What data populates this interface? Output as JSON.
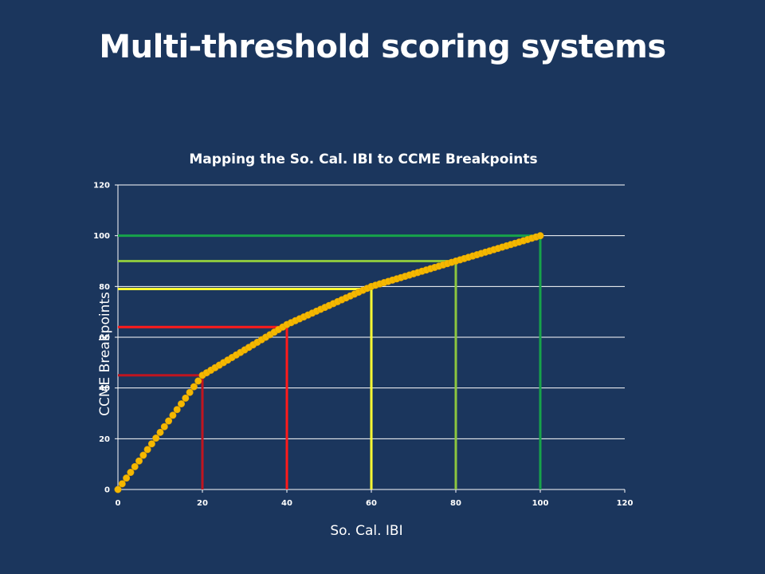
{
  "slide": {
    "title": "Multi-threshold scoring systems"
  },
  "chart_data": {
    "type": "scatter",
    "title": "Mapping the So. Cal. IBI to CCME Breakpoints",
    "xlabel": "So. Cal. IBI",
    "ylabel": "CCME Breakpoints",
    "xlim": [
      0,
      120
    ],
    "ylim": [
      0,
      120
    ],
    "xticks": [
      "0",
      "20",
      "40",
      "60",
      "80",
      "100",
      "120"
    ],
    "yticks": [
      "0",
      "20",
      "40",
      "60",
      "80",
      "100",
      "120"
    ],
    "grid": true,
    "series": [
      {
        "color": "#f5b800",
        "breakpoints": [
          [
            0,
            0
          ],
          [
            20,
            45
          ],
          [
            40,
            65
          ],
          [
            60,
            80
          ],
          [
            80,
            90
          ],
          [
            100,
            100
          ]
        ],
        "step": 1
      }
    ],
    "thresholds": [
      {
        "x": 20,
        "y": 45,
        "color": "#c0151f"
      },
      {
        "x": 40,
        "y": 64,
        "color": "#ff1a1a"
      },
      {
        "x": 60,
        "y": 79,
        "color": "#ffff33"
      },
      {
        "x": 80,
        "y": 90,
        "color": "#8cc63f"
      },
      {
        "x": 100,
        "y": 100,
        "color": "#17a34a"
      }
    ]
  }
}
